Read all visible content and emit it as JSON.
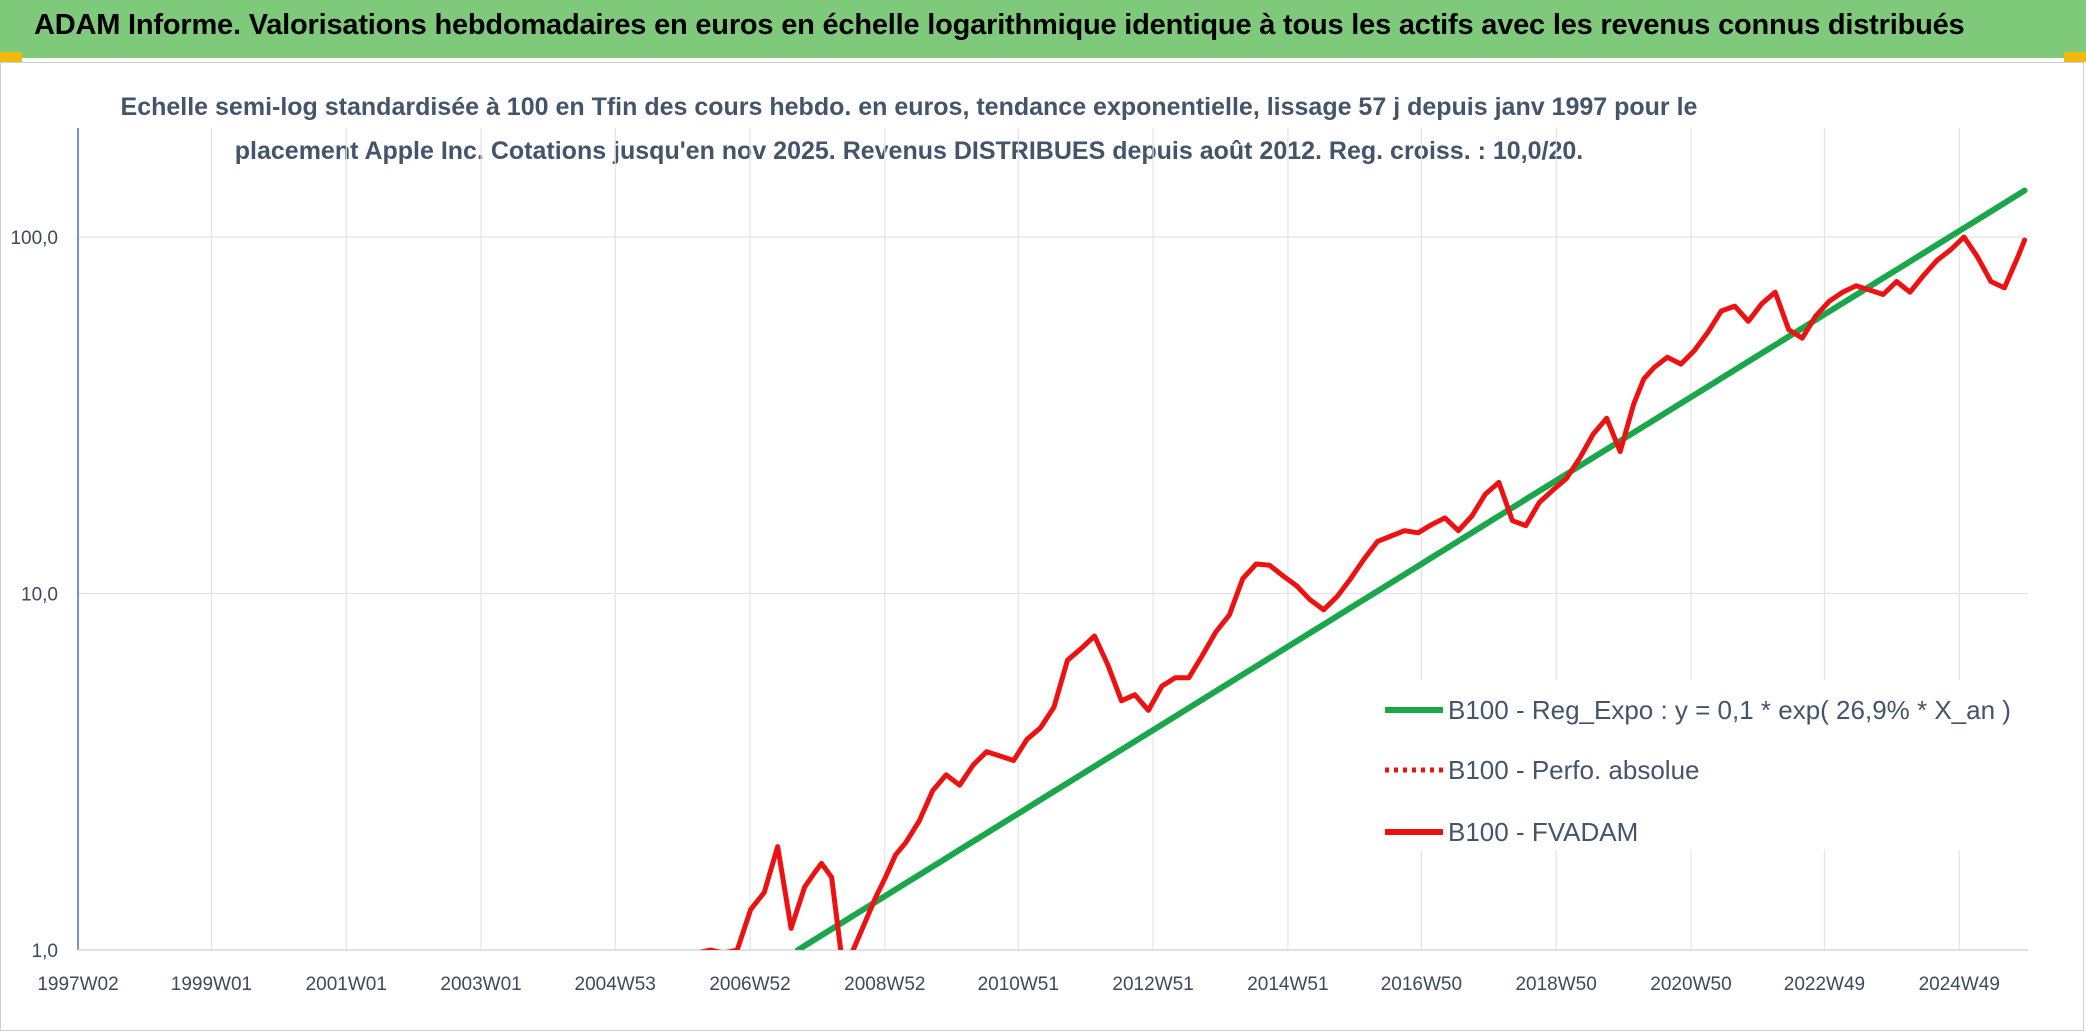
{
  "header": {
    "title": "ADAM Informe. Valorisations hebdomadaires en euros en échelle logarithmique identique à tous les actifs avec les revenus connus distribués"
  },
  "colors": {
    "header_bg": "#7fc97a",
    "corner_accent": "#f2b90f",
    "trend_line": "#1aa64a",
    "fvadam_line": "#ee1111",
    "perfo_line": "#ee1111",
    "grid": "#d9d9d9",
    "axis_text": "#44546a"
  },
  "chart_data": {
    "type": "line",
    "subtitle_lines": [
      "Echelle semi-log standardisée à 100 en Tfin des cours hebdo. en euros, tendance exponentielle, lissage 57 j depuis janv 1997 pour le",
      "placement Apple Inc. Cotations jusqu'en nov 2025. Revenus DISTRIBUES depuis août 2012. Reg. croiss. : 10,0/20."
    ],
    "y_scale": "log",
    "ylim": [
      1,
      180
    ],
    "xlim": [
      1997.02,
      2025.95
    ],
    "y_ticks": [
      {
        "value": 1,
        "label": "1,0"
      },
      {
        "value": 10,
        "label": "10,0"
      },
      {
        "value": 100,
        "label": "100,0"
      }
    ],
    "x_ticks": [
      {
        "value": 1997.02,
        "label": "1997W02"
      },
      {
        "value": 1999.0,
        "label": "1999W01"
      },
      {
        "value": 2001.0,
        "label": "2001W01"
      },
      {
        "value": 2003.0,
        "label": "2003W01"
      },
      {
        "value": 2004.99,
        "label": "2004W53"
      },
      {
        "value": 2006.99,
        "label": "2006W52"
      },
      {
        "value": 2008.99,
        "label": "2008W52"
      },
      {
        "value": 2010.97,
        "label": "2010W51"
      },
      {
        "value": 2012.97,
        "label": "2012W51"
      },
      {
        "value": 2014.97,
        "label": "2014W51"
      },
      {
        "value": 2016.95,
        "label": "2016W50"
      },
      {
        "value": 2018.95,
        "label": "2018W50"
      },
      {
        "value": 2020.95,
        "label": "2020W50"
      },
      {
        "value": 2022.93,
        "label": "2022W49"
      },
      {
        "value": 2024.93,
        "label": "2024W49"
      }
    ],
    "grid": true,
    "legend_position": "right",
    "series": [
      {
        "name": "B100 - Reg_Expo : y = 0,1 * exp( 26,9% *  X_an )",
        "style": "solid-green",
        "x": [
          2007.7,
          2025.9
        ],
        "y": [
          1.0,
          135
        ]
      },
      {
        "name": "B100 - Perfo. absolue",
        "style": "dotted-red",
        "x": [],
        "y": []
      },
      {
        "name": "B100 - FVADAM",
        "style": "solid-red",
        "x": [
          2006.0,
          2006.4,
          2006.6,
          2006.8,
          2007.0,
          2007.2,
          2007.4,
          2007.6,
          2007.8,
          2007.95,
          2008.05,
          2008.2,
          2008.35,
          2008.5,
          2008.7,
          2008.85,
          2009.0,
          2009.15,
          2009.3,
          2009.5,
          2009.7,
          2009.9,
          2010.1,
          2010.3,
          2010.5,
          2010.7,
          2010.9,
          2011.1,
          2011.3,
          2011.5,
          2011.7,
          2011.9,
          2012.1,
          2012.3,
          2012.5,
          2012.7,
          2012.9,
          2013.1,
          2013.3,
          2013.5,
          2013.7,
          2013.9,
          2014.1,
          2014.3,
          2014.5,
          2014.7,
          2014.9,
          2015.1,
          2015.3,
          2015.5,
          2015.7,
          2015.9,
          2016.1,
          2016.3,
          2016.5,
          2016.7,
          2016.9,
          2017.1,
          2017.3,
          2017.5,
          2017.7,
          2017.9,
          2018.1,
          2018.3,
          2018.5,
          2018.7,
          2018.9,
          2019.1,
          2019.3,
          2019.5,
          2019.7,
          2019.9,
          2020.1,
          2020.25,
          2020.4,
          2020.6,
          2020.8,
          2021.0,
          2021.2,
          2021.4,
          2021.6,
          2021.8,
          2022.0,
          2022.2,
          2022.4,
          2022.6,
          2022.8,
          2023.0,
          2023.2,
          2023.4,
          2023.6,
          2023.8,
          2024.0,
          2024.2,
          2024.4,
          2024.6,
          2024.8,
          2025.0,
          2025.2,
          2025.4,
          2025.6,
          2025.8,
          2025.9
        ],
        "y": [
          0.96,
          1.0,
          0.98,
          1.0,
          1.3,
          1.45,
          1.95,
          1.15,
          1.5,
          1.65,
          1.75,
          1.6,
          0.95,
          0.98,
          1.2,
          1.4,
          1.6,
          1.85,
          2.0,
          2.3,
          2.8,
          3.1,
          2.9,
          3.3,
          3.6,
          3.5,
          3.4,
          3.9,
          4.2,
          4.8,
          6.5,
          7.0,
          7.6,
          6.3,
          5.0,
          5.2,
          4.7,
          5.5,
          5.8,
          5.8,
          6.7,
          7.8,
          8.7,
          11.0,
          12.1,
          12.0,
          11.2,
          10.5,
          9.6,
          9.0,
          9.8,
          11.0,
          12.5,
          14.0,
          14.5,
          15.0,
          14.8,
          15.6,
          16.3,
          15.0,
          16.5,
          19.0,
          20.5,
          16.0,
          15.5,
          18.0,
          19.5,
          21.0,
          24.0,
          28.0,
          31.0,
          25.0,
          34.0,
          40.0,
          43.0,
          46.0,
          44.0,
          48.0,
          54.0,
          62.0,
          64.0,
          58.0,
          65.0,
          70.0,
          55.0,
          52.0,
          60.0,
          66.0,
          70.0,
          73.0,
          71.0,
          69.0,
          75.0,
          70.0,
          78.0,
          86.0,
          92.0,
          100.0,
          88.0,
          75.0,
          72.0,
          88.0,
          98.0
        ]
      }
    ]
  }
}
